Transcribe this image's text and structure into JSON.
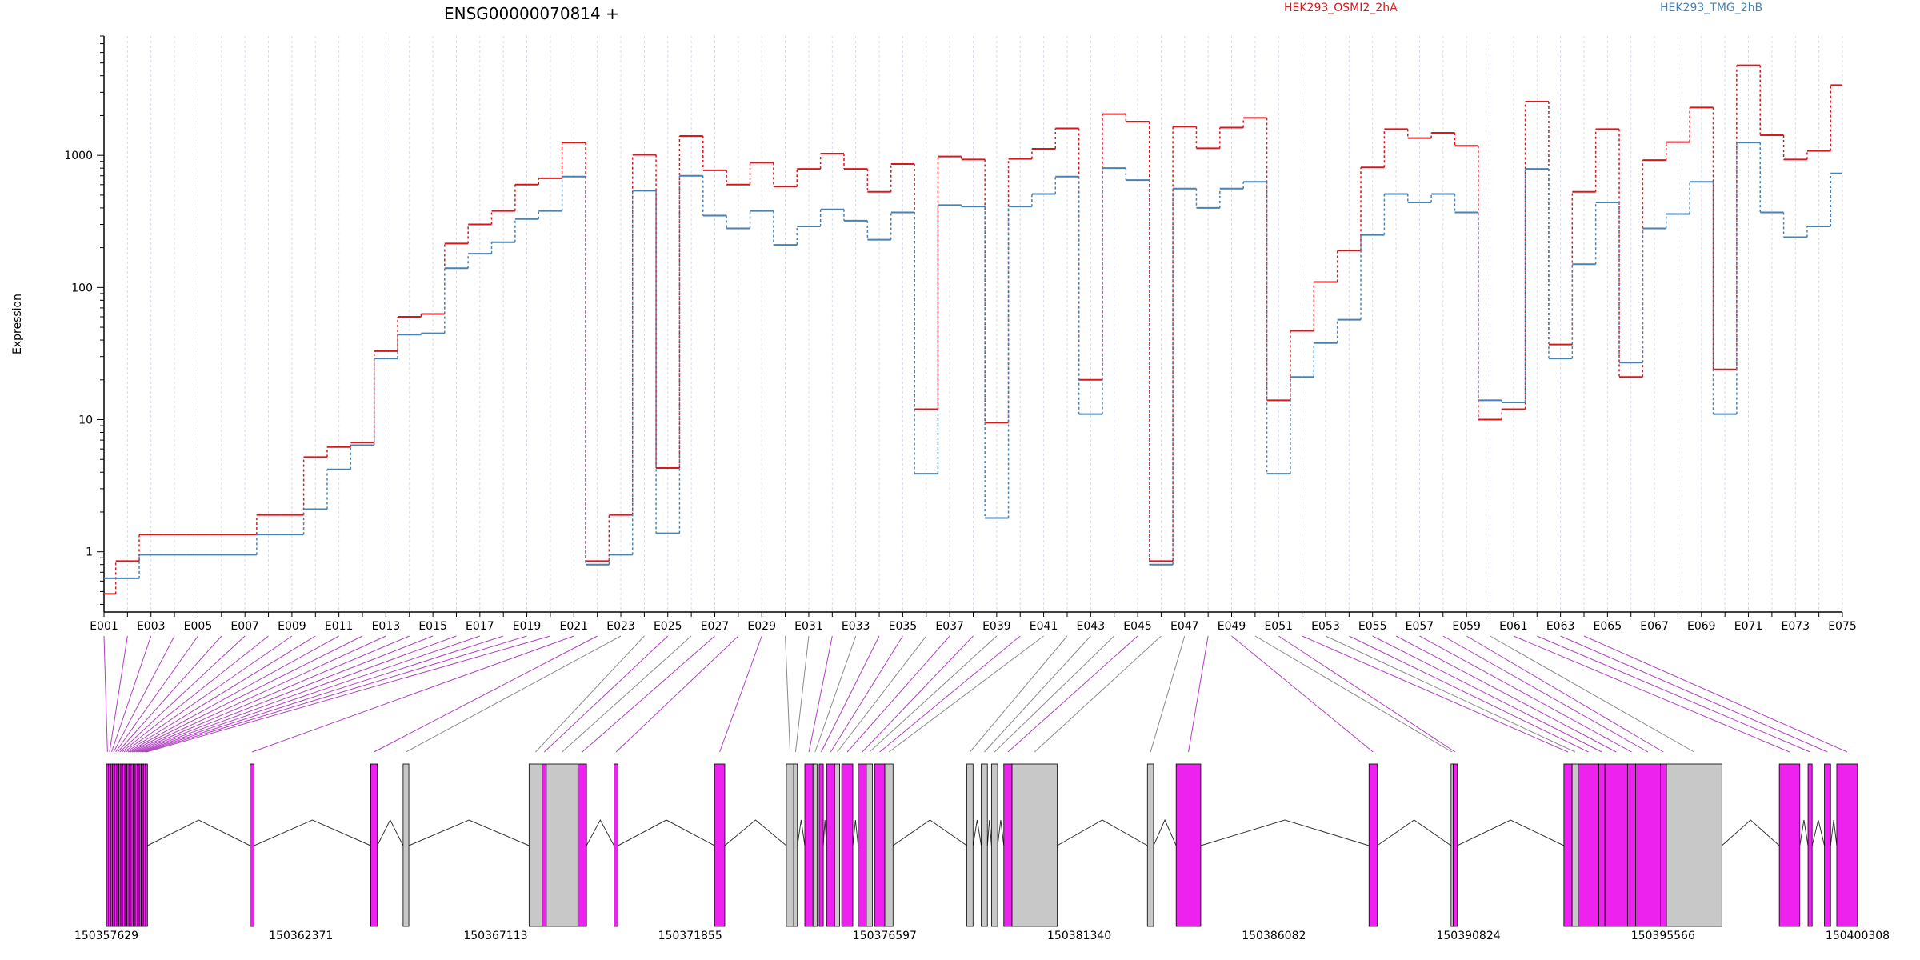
{
  "chart_data": {
    "type": "line",
    "title": "ENSG00000070814 +",
    "xlabel": "",
    "ylabel": "Expression",
    "y_scale": "log",
    "yticks": [
      1,
      10,
      100,
      1000
    ],
    "ylim": [
      0.35,
      8000
    ],
    "categories": [
      "E001",
      "E002",
      "E003",
      "E004",
      "E005",
      "E006",
      "E007",
      "E008",
      "E009",
      "E010",
      "E011",
      "E012",
      "E013",
      "E014",
      "E015",
      "E016",
      "E017",
      "E018",
      "E019",
      "E020",
      "E021",
      "E022",
      "E023",
      "E024",
      "E025",
      "E026",
      "E027",
      "E028",
      "E029",
      "E030",
      "E031",
      "E032",
      "E033",
      "E034",
      "E035",
      "E036",
      "E037",
      "E038",
      "E039",
      "E040",
      "E041",
      "E042",
      "E043",
      "E044",
      "E045",
      "E046",
      "E047",
      "E048",
      "E049",
      "E050",
      "E051",
      "E052",
      "E053",
      "E054",
      "E055",
      "E056",
      "E057",
      "E058",
      "E059",
      "E060",
      "E061",
      "E062",
      "E063",
      "E064",
      "E065",
      "E066",
      "E067",
      "E068",
      "E069",
      "E070",
      "E071",
      "E072",
      "E073",
      "E074",
      "E075"
    ],
    "series": [
      {
        "name": "HEK293_OSMI2_2hA",
        "color": "#d7191c",
        "values": [
          0.48,
          0.85,
          1.35,
          1.35,
          1.35,
          1.35,
          1.35,
          1.9,
          1.9,
          5.2,
          6.2,
          6.7,
          33,
          60,
          63,
          215,
          300,
          380,
          600,
          670,
          1250,
          0.85,
          1.9,
          1010,
          4.3,
          1400,
          770,
          600,
          880,
          580,
          790,
          1030,
          790,
          530,
          860,
          12,
          980,
          930,
          9.5,
          940,
          1120,
          1600,
          20,
          2050,
          1800,
          0.85,
          1650,
          1130,
          1620,
          1920,
          14,
          47,
          110,
          190,
          810,
          1580,
          1350,
          1480,
          1180,
          10,
          12,
          2550,
          37,
          530,
          1580,
          21,
          920,
          1260,
          2300,
          24,
          4800,
          1420,
          930,
          1080,
          3400
        ]
      },
      {
        "name": "HEK293_TMG_2hB",
        "color": "#4682b4",
        "values": [
          0.63,
          0.63,
          0.95,
          0.95,
          0.95,
          0.95,
          0.95,
          1.35,
          1.35,
          2.1,
          4.2,
          6.4,
          29,
          44,
          45,
          140,
          180,
          220,
          330,
          380,
          690,
          0.8,
          0.95,
          540,
          1.38,
          700,
          350,
          280,
          380,
          210,
          290,
          390,
          320,
          230,
          370,
          3.9,
          420,
          410,
          1.8,
          410,
          510,
          690,
          11,
          800,
          650,
          0.8,
          560,
          400,
          560,
          630,
          3.9,
          21,
          38,
          57,
          250,
          510,
          440,
          510,
          370,
          14,
          13.5,
          790,
          29,
          150,
          440,
          27,
          280,
          360,
          630,
          11,
          1250,
          370,
          240,
          290,
          730
        ]
      }
    ],
    "gene_axis_labels": [
      "150357629",
      "150362371",
      "150367113",
      "150371855",
      "150376597",
      "150381340",
      "150386082",
      "150390824",
      "150395566",
      "150400308"
    ],
    "gene_range": [
      150357629,
      150400308
    ],
    "exons": [
      [
        150357629,
        150357680,
        "i"
      ],
      [
        150357680,
        150357730,
        "i"
      ],
      [
        150357730,
        150357780,
        "i"
      ],
      [
        150357780,
        150357830,
        "i"
      ],
      [
        150357830,
        150357880,
        "i"
      ],
      [
        150357880,
        150357930,
        "i"
      ],
      [
        150357930,
        150357980,
        "i"
      ],
      [
        150357980,
        150358030,
        "i"
      ],
      [
        150358030,
        150358080,
        "i"
      ],
      [
        150358080,
        150358130,
        "i"
      ],
      [
        150358130,
        150358180,
        "i"
      ],
      [
        150358180,
        150358230,
        "i"
      ],
      [
        150358230,
        150358280,
        "i"
      ],
      [
        150358280,
        150358330,
        "i"
      ],
      [
        150358330,
        150358380,
        "i"
      ],
      [
        150358380,
        150358430,
        "i"
      ],
      [
        150358430,
        150358480,
        "i"
      ],
      [
        150358480,
        150358530,
        "i"
      ],
      [
        150358530,
        150358580,
        "i"
      ],
      [
        150358580,
        150358630,
        "i"
      ],
      [
        150361130,
        150361230,
        "s"
      ],
      [
        150364070,
        150364230,
        "s"
      ],
      [
        150364860,
        150365000,
        "n"
      ],
      [
        150367930,
        150368250,
        "n"
      ],
      [
        150368250,
        150368350,
        "s"
      ],
      [
        150368350,
        150369120,
        "n"
      ],
      [
        150369120,
        150369330,
        "s"
      ],
      [
        150370000,
        150370100,
        "s"
      ],
      [
        150372450,
        150372700,
        "s"
      ],
      [
        150374200,
        150374380,
        "n"
      ],
      [
        150374380,
        150374470,
        "n"
      ],
      [
        150374650,
        150374850,
        "s"
      ],
      [
        150374850,
        150374950,
        "n"
      ],
      [
        150375000,
        150375100,
        "s"
      ],
      [
        150375180,
        150375380,
        "s"
      ],
      [
        150375380,
        150375500,
        "n"
      ],
      [
        150375550,
        150375820,
        "s"
      ],
      [
        150375950,
        150376150,
        "s"
      ],
      [
        150376150,
        150376300,
        "n"
      ],
      [
        150376350,
        150376600,
        "s"
      ],
      [
        150376600,
        150376800,
        "n"
      ],
      [
        150378600,
        150378750,
        "n"
      ],
      [
        150378950,
        150379100,
        "n"
      ],
      [
        150379200,
        150379350,
        "n"
      ],
      [
        150379500,
        150379700,
        "s"
      ],
      [
        150379700,
        150380800,
        "n"
      ],
      [
        150383000,
        150383150,
        "n"
      ],
      [
        150383700,
        150384300,
        "s"
      ],
      [
        150388400,
        150388600,
        "s"
      ],
      [
        150390400,
        150390450,
        "n"
      ],
      [
        150390450,
        150390550,
        "s"
      ],
      [
        150393150,
        150393350,
        "s"
      ],
      [
        150393350,
        150393500,
        "n"
      ],
      [
        150393500,
        150394000,
        "s"
      ],
      [
        150394000,
        150394150,
        "s"
      ],
      [
        150394150,
        150394700,
        "s"
      ],
      [
        150394700,
        150394900,
        "s"
      ],
      [
        150394900,
        150395500,
        "s"
      ],
      [
        150395500,
        150395650,
        "s"
      ],
      [
        150395650,
        150397000,
        "n"
      ],
      [
        150398400,
        150398900,
        "s"
      ],
      [
        150399100,
        150399200,
        "s"
      ],
      [
        150399500,
        150399650,
        "s"
      ],
      [
        150399800,
        150400308,
        "s"
      ]
    ]
  }
}
